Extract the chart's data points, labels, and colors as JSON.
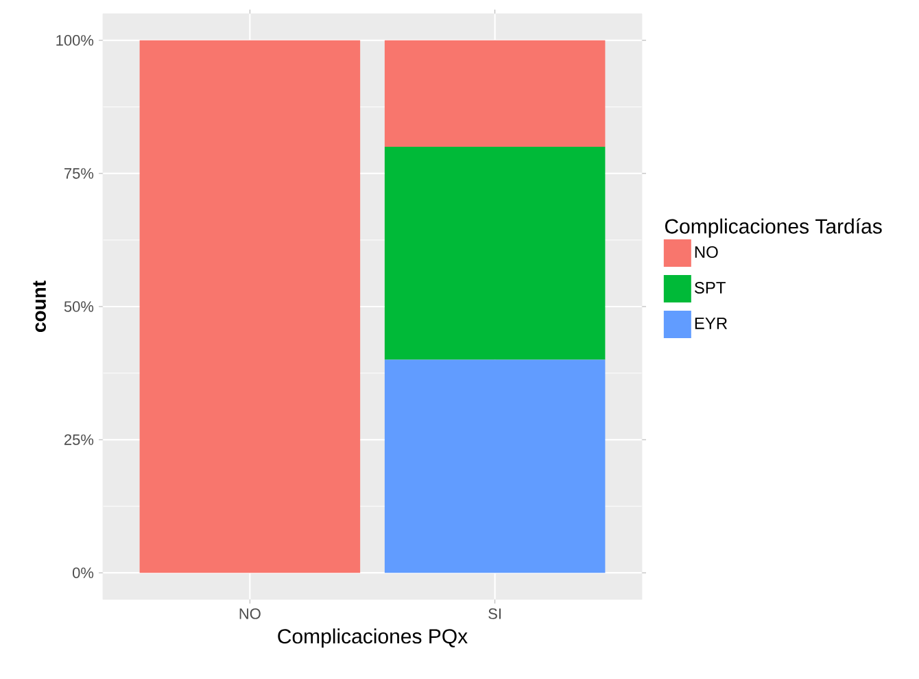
{
  "chart_data": {
    "type": "bar",
    "stacked": true,
    "xlabel": "Complicaciones PQx",
    "ylabel": "count",
    "legend_title": "Complicaciones Tardías",
    "categories": [
      "NO",
      "SI"
    ],
    "series": [
      {
        "name": "EYR",
        "color": "#619cff",
        "values": [
          0,
          40
        ]
      },
      {
        "name": "SPT",
        "color": "#00ba38",
        "values": [
          0,
          40
        ]
      },
      {
        "name": "NO",
        "color": "#f8766d",
        "values": [
          100,
          20
        ]
      }
    ],
    "ylim": [
      -5,
      105
    ],
    "yticks": [
      {
        "value": 0,
        "label": "0%"
      },
      {
        "value": 25,
        "label": "25%"
      },
      {
        "value": 50,
        "label": "50%"
      },
      {
        "value": 75,
        "label": "75%"
      },
      {
        "value": 100,
        "label": "100%"
      }
    ],
    "grid": true,
    "legend": "right"
  }
}
